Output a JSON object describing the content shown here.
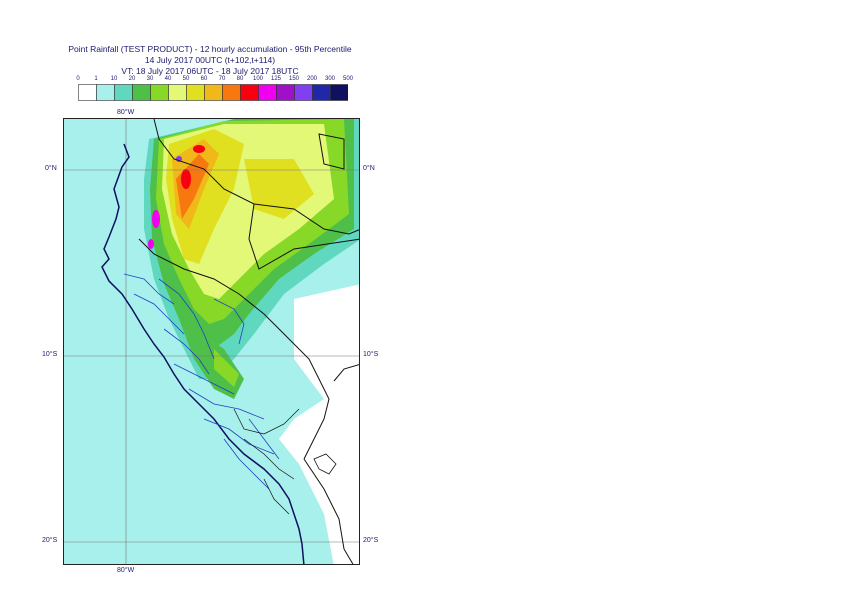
{
  "title": {
    "line1": "Point Rainfall (TEST PRODUCT) - 12 hourly accumulation - 95th Percentile",
    "line2": "14 July 2017 00UTC (t+102,t+114)",
    "line3": "VT: 18 July 2017 06UTC - 18 July 2017 18UTC"
  },
  "legend": {
    "thresholds": [
      "0",
      "1",
      "10",
      "20",
      "30",
      "40",
      "50",
      "60",
      "70",
      "80",
      "100",
      "125",
      "150",
      "200",
      "300",
      "500"
    ],
    "colors": [
      "#ffffff",
      "#a8f0ec",
      "#60d8c0",
      "#4ec04a",
      "#88d828",
      "#e4f878",
      "#e0e020",
      "#f0b818",
      "#f87810",
      "#f80010",
      "#f000f0",
      "#a010c8",
      "#8040f0",
      "#2028a8",
      "#101060"
    ]
  },
  "map": {
    "lon_labels": [
      "80°W",
      "80°W"
    ],
    "lat_labels": [
      "0°N",
      "0°N",
      "10°S",
      "10°S",
      "20°S",
      "20°S"
    ]
  }
}
